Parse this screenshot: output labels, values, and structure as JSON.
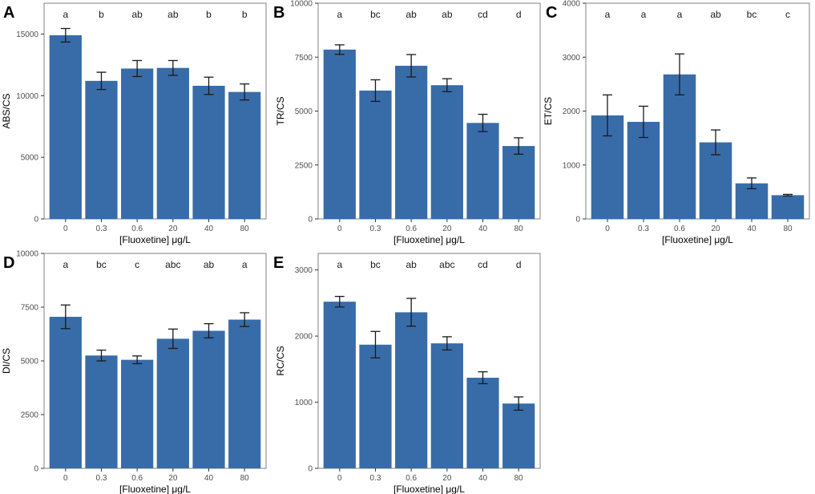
{
  "colors": {
    "bar": "#386ca8",
    "frame": "#808080",
    "error": "#1a1a1a"
  },
  "chart_data": [
    {
      "type": "bar",
      "panel_label": "A",
      "ylabel": "ABS/CS",
      "xlabel": "[Fluoxetine] μg/L",
      "categories": [
        "0",
        "0.3",
        "0.6",
        "20",
        "40",
        "80"
      ],
      "values": [
        14900,
        11200,
        12200,
        12250,
        10800,
        10300
      ],
      "errors": [
        550,
        700,
        650,
        600,
        700,
        650
      ],
      "significance": [
        "a",
        "b",
        "ab",
        "ab",
        "b",
        "b"
      ],
      "ylim": [
        0,
        17500
      ],
      "yticks": [
        0,
        5000,
        10000,
        15000
      ],
      "ytick_labels": [
        "0",
        "5000",
        "10000",
        "15000"
      ]
    },
    {
      "type": "bar",
      "panel_label": "B",
      "ylabel": "TR/CS",
      "xlabel": "[Fluoxetine] μg/L",
      "categories": [
        "0",
        "0.3",
        "0.6",
        "20",
        "40",
        "80"
      ],
      "values": [
        7850,
        5950,
        7100,
        6200,
        4450,
        3380
      ],
      "errors": [
        220,
        500,
        520,
        300,
        400,
        380
      ],
      "significance": [
        "a",
        "bc",
        "ab",
        "ab",
        "cd",
        "d"
      ],
      "ylim": [
        0,
        10000
      ],
      "yticks": [
        0,
        2500,
        5000,
        7500,
        10000
      ],
      "ytick_labels": [
        "0",
        "2500",
        "5000",
        "7500",
        "10000"
      ]
    },
    {
      "type": "bar",
      "panel_label": "C",
      "ylabel": "ET/CS",
      "xlabel": "[Fluoxetine] μg/L",
      "categories": [
        "0",
        "0.3",
        "0.6",
        "20",
        "40",
        "80"
      ],
      "values": [
        1920,
        1800,
        2680,
        1420,
        660,
        440
      ],
      "errors": [
        380,
        290,
        380,
        230,
        100,
        15
      ],
      "significance": [
        "a",
        "a",
        "a",
        "ab",
        "bc",
        "c"
      ],
      "ylim": [
        0,
        4000
      ],
      "yticks": [
        0,
        1000,
        2000,
        3000,
        4000
      ],
      "ytick_labels": [
        "0",
        "1000",
        "2000",
        "3000",
        "4000"
      ]
    },
    {
      "type": "bar",
      "panel_label": "D",
      "ylabel": "DI/CS",
      "xlabel": "[Fluoxetine] μg/L",
      "categories": [
        "0",
        "0.3",
        "0.6",
        "20",
        "40",
        "80"
      ],
      "values": [
        7050,
        5250,
        5050,
        6030,
        6400,
        6920
      ],
      "errors": [
        550,
        250,
        180,
        450,
        330,
        320
      ],
      "significance": [
        "a",
        "bc",
        "c",
        "abc",
        "ab",
        "a"
      ],
      "ylim": [
        0,
        10000
      ],
      "yticks": [
        0,
        2500,
        5000,
        7500,
        10000
      ],
      "ytick_labels": [
        "0",
        "2500",
        "5000",
        "7500",
        "10000"
      ]
    },
    {
      "type": "bar",
      "panel_label": "E",
      "ylabel": "RC/CS",
      "xlabel": "[Fluoxetine] μg/L",
      "categories": [
        "0",
        "0.3",
        "0.6",
        "20",
        "40",
        "80"
      ],
      "values": [
        2520,
        1870,
        2360,
        1890,
        1370,
        980
      ],
      "errors": [
        80,
        200,
        210,
        100,
        90,
        100
      ],
      "significance": [
        "a",
        "bc",
        "ab",
        "abc",
        "cd",
        "d"
      ],
      "ylim": [
        0,
        3250
      ],
      "yticks": [
        0,
        1000,
        2000,
        3000
      ],
      "ytick_labels": [
        "0",
        "1000",
        "2000",
        "3000"
      ]
    }
  ]
}
